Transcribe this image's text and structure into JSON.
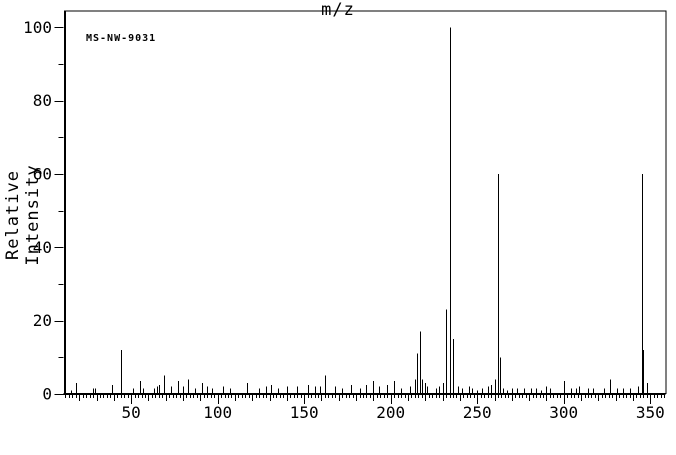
{
  "annotation": "MS-NW-9031",
  "chart_data": {
    "type": "bar",
    "subtype": "mass-spectrum-stick-plot",
    "title": "",
    "annotation": "MS-NW-9031",
    "xlabel": "m/z",
    "ylabel": "Relative Intensity",
    "xlim": [
      11.5,
      358.8
    ],
    "ylim": [
      0,
      104.6
    ],
    "x_axis": {
      "major_ticks": [
        50,
        100,
        150,
        200,
        250,
        300,
        350
      ],
      "medium_tick_step": 10,
      "minor_tick_step": 2
    },
    "y_axis": {
      "major_ticks": [
        0,
        20,
        40,
        60,
        80,
        100
      ],
      "minor_tick_step": 10
    },
    "grid": "off",
    "legend": "none",
    "colors": {
      "line": "#000000",
      "background": "#ffffff",
      "text": "#000000"
    },
    "peaks": [
      [
        15,
        1
      ],
      [
        18,
        3
      ],
      [
        28,
        1.5
      ],
      [
        29,
        1.5
      ],
      [
        39,
        2.5
      ],
      [
        44,
        12
      ],
      [
        51,
        1.5
      ],
      [
        55,
        3.5
      ],
      [
        57,
        1.5
      ],
      [
        63,
        1.5
      ],
      [
        65,
        2
      ],
      [
        66,
        2.5
      ],
      [
        69,
        5
      ],
      [
        73,
        2
      ],
      [
        77,
        3.5
      ],
      [
        80,
        2
      ],
      [
        83,
        4
      ],
      [
        87,
        1.5
      ],
      [
        91,
        3
      ],
      [
        94,
        2
      ],
      [
        97,
        1.5
      ],
      [
        103,
        2
      ],
      [
        107,
        1.5
      ],
      [
        117,
        3
      ],
      [
        124,
        1.5
      ],
      [
        128,
        2
      ],
      [
        131,
        2.5
      ],
      [
        135,
        1.5
      ],
      [
        140,
        2
      ],
      [
        146,
        2
      ],
      [
        152,
        2.5
      ],
      [
        156,
        2
      ],
      [
        159,
        2
      ],
      [
        162,
        5
      ],
      [
        168,
        2
      ],
      [
        172,
        1.5
      ],
      [
        177,
        2.5
      ],
      [
        182,
        1.5
      ],
      [
        186,
        2.5
      ],
      [
        190,
        3.5
      ],
      [
        193,
        2
      ],
      [
        198,
        2.5
      ],
      [
        202,
        3.5
      ],
      [
        206,
        1.5
      ],
      [
        211,
        2
      ],
      [
        214,
        4
      ],
      [
        215,
        11
      ],
      [
        217,
        17
      ],
      [
        218,
        4
      ],
      [
        220,
        3
      ],
      [
        221,
        2
      ],
      [
        226,
        1.5
      ],
      [
        228,
        2
      ],
      [
        230,
        3
      ],
      [
        232,
        23
      ],
      [
        234,
        100
      ],
      [
        236,
        15
      ],
      [
        239,
        2
      ],
      [
        241,
        1.5
      ],
      [
        245,
        2
      ],
      [
        247,
        1.5
      ],
      [
        250,
        1
      ],
      [
        253,
        1.5
      ],
      [
        256,
        2
      ],
      [
        258,
        2.5
      ],
      [
        260,
        4
      ],
      [
        262,
        60
      ],
      [
        263,
        10
      ],
      [
        265,
        1.5
      ],
      [
        267,
        1
      ],
      [
        270,
        1.5
      ],
      [
        273,
        1.5
      ],
      [
        277,
        1.5
      ],
      [
        281,
        1.5
      ],
      [
        284,
        1.5
      ],
      [
        287,
        1
      ],
      [
        290,
        2
      ],
      [
        292,
        1.5
      ],
      [
        300,
        3.5
      ],
      [
        304,
        1.5
      ],
      [
        307,
        1.5
      ],
      [
        309,
        2
      ],
      [
        314,
        1.5
      ],
      [
        317,
        1.5
      ],
      [
        323,
        1.5
      ],
      [
        327,
        4
      ],
      [
        331,
        1.5
      ],
      [
        334,
        1.5
      ],
      [
        338,
        1.5
      ],
      [
        343,
        2
      ],
      [
        345,
        60
      ],
      [
        346,
        12
      ],
      [
        348,
        3
      ]
    ]
  }
}
